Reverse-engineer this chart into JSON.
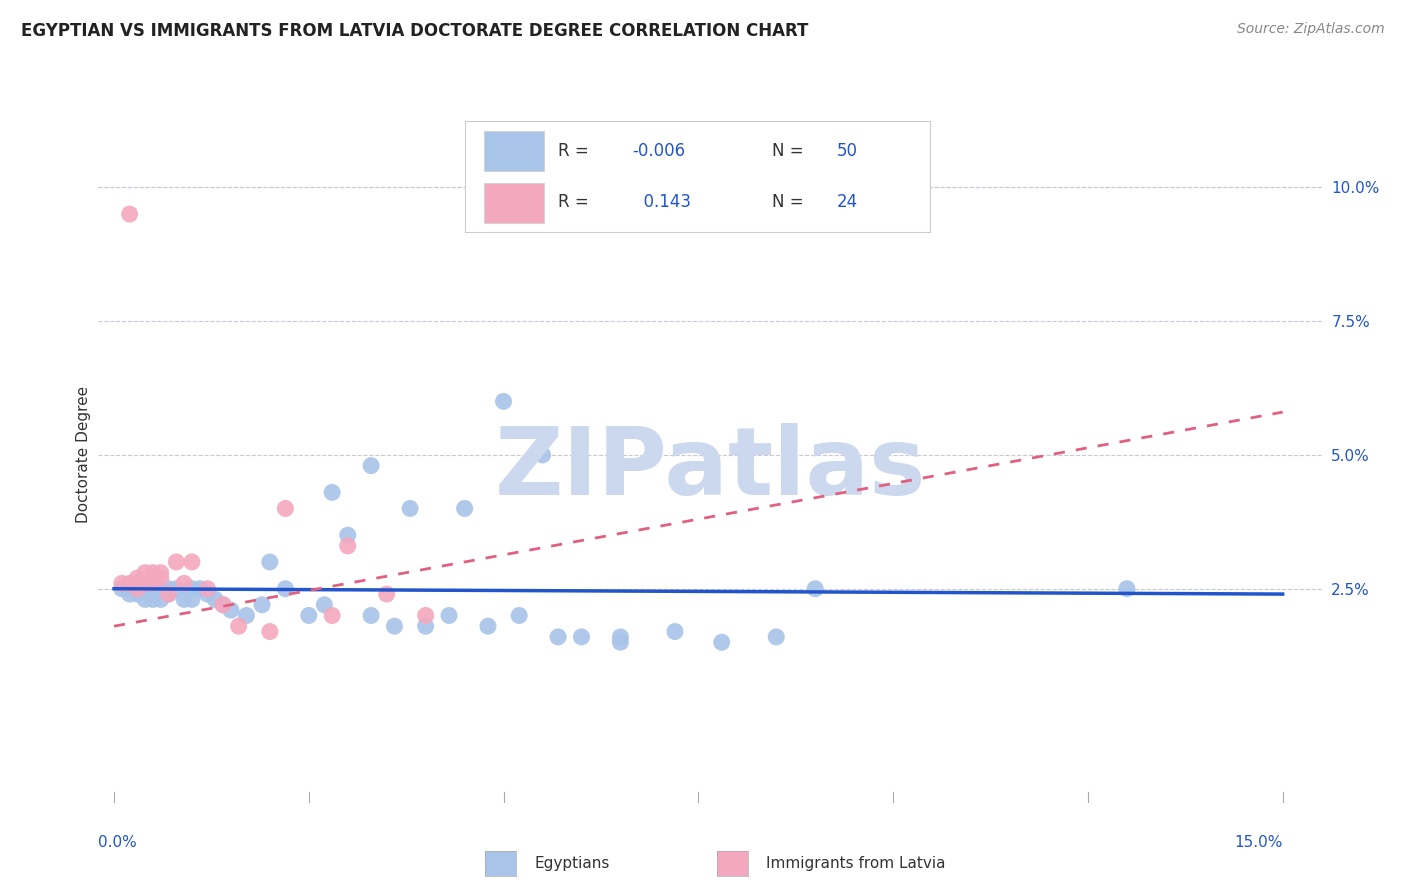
{
  "title": "EGYPTIAN VS IMMIGRANTS FROM LATVIA DOCTORATE DEGREE CORRELATION CHART",
  "source": "Source: ZipAtlas.com",
  "ylabel": "Doctorate Degree",
  "ylabel_right_ticks": [
    "10.0%",
    "7.5%",
    "5.0%",
    "2.5%"
  ],
  "ylabel_right_vals": [
    0.1,
    0.075,
    0.05,
    0.025
  ],
  "xlim": [
    -0.002,
    0.155
  ],
  "ylim": [
    -0.015,
    0.115
  ],
  "egyptians_color": "#a8c4e8",
  "latvia_color": "#f4a8be",
  "trend_egypt_color": "#2255cc",
  "trend_latvia_color": "#e06080",
  "egyptians_x": [
    0.001,
    0.002,
    0.002,
    0.003,
    0.003,
    0.004,
    0.004,
    0.005,
    0.005,
    0.006,
    0.006,
    0.007,
    0.007,
    0.008,
    0.009,
    0.01,
    0.01,
    0.011,
    0.012,
    0.013,
    0.014,
    0.015,
    0.017,
    0.019,
    0.02,
    0.022,
    0.025,
    0.027,
    0.03,
    0.033,
    0.036,
    0.04,
    0.043,
    0.048,
    0.052,
    0.057,
    0.065,
    0.072,
    0.078,
    0.085,
    0.028,
    0.033,
    0.038,
    0.045,
    0.05,
    0.055,
    0.06,
    0.065,
    0.09,
    0.13
  ],
  "egyptians_y": [
    0.025,
    0.025,
    0.024,
    0.026,
    0.024,
    0.025,
    0.023,
    0.025,
    0.023,
    0.025,
    0.023,
    0.025,
    0.024,
    0.025,
    0.023,
    0.025,
    0.023,
    0.025,
    0.024,
    0.023,
    0.022,
    0.021,
    0.02,
    0.022,
    0.03,
    0.025,
    0.02,
    0.022,
    0.035,
    0.02,
    0.018,
    0.018,
    0.02,
    0.018,
    0.02,
    0.016,
    0.015,
    0.017,
    0.015,
    0.016,
    0.043,
    0.048,
    0.04,
    0.04,
    0.06,
    0.05,
    0.016,
    0.016,
    0.025,
    0.025
  ],
  "latvia_x": [
    0.001,
    0.002,
    0.003,
    0.003,
    0.004,
    0.004,
    0.005,
    0.005,
    0.006,
    0.006,
    0.007,
    0.008,
    0.009,
    0.01,
    0.012,
    0.014,
    0.016,
    0.02,
    0.022,
    0.028,
    0.03,
    0.035,
    0.04,
    0.002
  ],
  "latvia_y": [
    0.026,
    0.026,
    0.025,
    0.027,
    0.026,
    0.028,
    0.026,
    0.028,
    0.027,
    0.028,
    0.024,
    0.03,
    0.026,
    0.03,
    0.025,
    0.022,
    0.018,
    0.017,
    0.04,
    0.02,
    0.033,
    0.024,
    0.02,
    0.095
  ],
  "background_color": "#ffffff",
  "grid_color": "#c8c8d8",
  "watermark": "ZIPatlas",
  "watermark_color": "#ccd8ee",
  "bottom_legend_labels": [
    "Egyptians",
    "Immigrants from Latvia"
  ]
}
